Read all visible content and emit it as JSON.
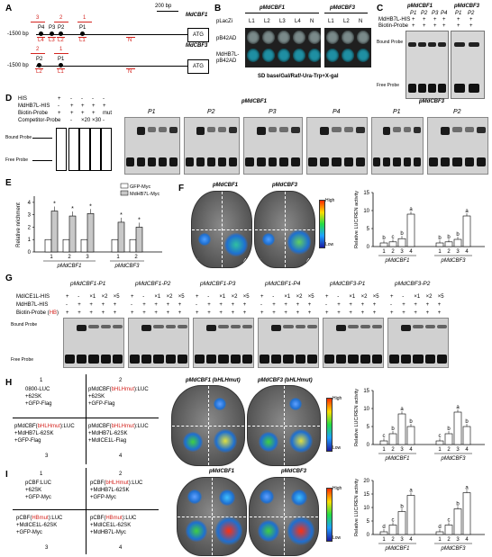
{
  "panels": {
    "A": {
      "label": "A",
      "scale": "200 bp",
      "bp_left": "-1500 bp",
      "gene1": "MdCBF1",
      "gene2": "MdCBF3",
      "atg": "ATG",
      "cbf1_pos": [
        "3",
        "2",
        "1"
      ],
      "cbf1_probes": [
        "P4",
        "P3",
        "P2",
        "P1"
      ],
      "cbf1_lanes": [
        "L4",
        "L3",
        "L2",
        "L1"
      ],
      "cbf3_pos": [
        "2",
        "1"
      ],
      "cbf3_probes": [
        "P2",
        "P1"
      ],
      "cbf3_lanes": [
        "L2",
        "L1"
      ],
      "n": "N"
    },
    "B": {
      "label": "B",
      "col1": "pMdCBF1",
      "col2": "pMdCBF3",
      "row0": "pLacZi",
      "row1": "pB42AD",
      "row2a": "MdHB7L-",
      "row2b": "pB42AD",
      "lanes1": [
        "L1",
        "L2",
        "L3",
        "L4",
        "N"
      ],
      "lanes2": [
        "L1",
        "L2",
        "N"
      ],
      "caption": "SD base/Gal/Raf/-Ura-Trp+X-gal"
    },
    "C": {
      "label": "C",
      "col1": "pMdCBF1",
      "col2": "pMdCBF3",
      "lanes1": [
        "P1",
        "P2",
        "P3",
        "P4"
      ],
      "lanes2": [
        "P1",
        "P2"
      ],
      "row1": "MdHB7L-HIS",
      "row2": "Biotin-Probe",
      "plus": "+",
      "bound": "Bound Probe",
      "free": "Free Probe"
    },
    "D": {
      "label": "D",
      "rows": [
        "HIS",
        "MdHB7L-HIS",
        "Biotin-Probe",
        "Competitor-Probe"
      ],
      "lane_vals": [
        [
          "+",
          "-",
          "-",
          "-",
          "-"
        ],
        [
          "-",
          "+",
          "+",
          "+",
          "+"
        ],
        [
          "+",
          "+",
          "+",
          "+",
          "mut"
        ],
        [
          "-",
          "-",
          "×20",
          "×30",
          "-"
        ]
      ],
      "bound": "Bound Probe",
      "free": "Free Probe",
      "cbf1": "pMdCBF1",
      "cbf3": "pMdCBF3",
      "gels1": [
        "P1",
        "P2",
        "P3",
        "P4"
      ],
      "gels2": [
        "P1",
        "P2"
      ]
    },
    "E": {
      "label": "E",
      "ylabel": "Relative nrichment",
      "legend": [
        "GFP-Myc",
        "MdHB7L-Myc"
      ],
      "xlabels1": [
        "1",
        "2",
        "3"
      ],
      "xlabels2": [
        "1",
        "2"
      ],
      "group1": "pMdCBF1",
      "group2": "pMdCBF3",
      "yticks": [
        "0",
        "1",
        "2",
        "3",
        "4"
      ],
      "star": "*"
    },
    "F": {
      "label": "F",
      "leaf1": "pMdCBF1",
      "leaf2": "pMdCBF3",
      "quads": [
        "1",
        "2",
        "3",
        "4"
      ],
      "high": "High",
      "low": "Low",
      "ylabel": "Relative LUC/REN activity",
      "yticks": [
        "0",
        "5",
        "10",
        "15"
      ],
      "letters1": [
        "b",
        "c",
        "b",
        "a"
      ],
      "letters2": [
        "b",
        "b",
        "b",
        "a"
      ],
      "group1": "pMdCBF1",
      "group2": "pMdCBF3",
      "xlabels": [
        "1",
        "2",
        "3",
        "4"
      ]
    },
    "G": {
      "label": "G",
      "titles": [
        "pMdCBF1-P1",
        "pMdCBF1-P2",
        "pMdCBF1-P3",
        "pMdCBF1-P4",
        "pMdCBF3-P1",
        "pMdCBF3-P2"
      ],
      "row1": "MdICE1L-HIS",
      "row2": "MdHB7L-HIS",
      "row3a": "Biotin-Probe (",
      "row3b": "HB",
      "row3c": ")",
      "r1": [
        "+",
        "-",
        "×1",
        "×2",
        "×5"
      ],
      "r2": [
        "-",
        "+",
        "+",
        "+",
        "+"
      ],
      "r3": [
        "+",
        "+",
        "+",
        "+",
        "+"
      ],
      "bound": "Bound Probe",
      "free": "Free Probe"
    },
    "H": {
      "label": "H",
      "q1_num": "1",
      "q1_lines": [
        "0800-LUC",
        "+62SK",
        "+GFP-Flag"
      ],
      "q2_num": "2",
      "q2_l1a": "pMdCBF(",
      "q2_l1b": "bHLHmut",
      "q2_l1c": "):LUC",
      "q2_lines": [
        "+62SK",
        "+GFP-Flag"
      ],
      "q3_num": "3",
      "q3_l1a": "pMdCBF(",
      "q3_l1b": "bHLHmut",
      "q3_l1c": "):LUC",
      "q3_lines": [
        "+MdHB7L-62SK",
        "+GFP-Flag"
      ],
      "q4_num": "4",
      "q4_l1a": "pMdCBF(",
      "q4_l1b": "bHLHmut",
      "q4_l1c": "):LUC",
      "q4_lines": [
        "+MdHB7L-62SK",
        "+MdICE1L-Flag"
      ],
      "leaf1": "pMdCBF1 (bHLHmut)",
      "leaf2": "pMdCBF3 (bHLHmut)",
      "ylabel": "Relative LUC/REN activity",
      "yticks": [
        "0",
        "5",
        "10",
        "15"
      ],
      "letters1": [
        "c",
        "b",
        "a",
        "b"
      ],
      "letters2": [
        "c",
        "b",
        "a",
        "b"
      ],
      "group1": "pMdCBF1",
      "group2": "pMdCBF3",
      "high": "High",
      "low": "Low"
    },
    "I": {
      "label": "I",
      "q1_num": "1",
      "q1_lines": [
        "pCBF:LUC",
        "+62SK",
        "+GFP-Myc"
      ],
      "q2_num": "2",
      "q2_l1a": "pCBF(",
      "q2_l1b": "bHLHmut",
      "q2_l1c": "):LUC",
      "q2_lines": [
        "+MdHB7L-62SK",
        "+GFP-Myc"
      ],
      "q3_num": "3",
      "q3_l1a": "pCBF(",
      "q3_l1b": "HBmut",
      "q3_l1c": "):LUC",
      "q3_lines": [
        "+MdICE1L-62SK",
        "+GFP-Myc"
      ],
      "q4_num": "4",
      "q4_l1a": "pCBF(",
      "q4_l1b": "HBmut",
      "q4_l1c": "):LUC",
      "q4_lines": [
        "+MdICE1L-62SK",
        "+MdHB7L-Myc"
      ],
      "leaf1": "pMdCBF1",
      "leaf2": "pMdCBF3",
      "ylabel": "Relative LUC/REN activity",
      "yticks": [
        "0",
        "5",
        "10",
        "15",
        "20"
      ],
      "letters1": [
        "d",
        "c",
        "b",
        "a"
      ],
      "letters2": [
        "d",
        "c",
        "b",
        "a"
      ],
      "group1": "pMdCBF1",
      "group2": "pMdCBF3",
      "high": "High",
      "low": "Low"
    }
  },
  "colors": {
    "red": "#d4241f",
    "gel_bg": "#d6d6d6",
    "band": "#1b1b1b",
    "leaf": "#505050",
    "colony_blue": "#1f8fa3"
  },
  "chart_data": [
    {
      "type": "bar",
      "panel": "E",
      "categories": [
        "pMdCBF1-1",
        "pMdCBF1-2",
        "pMdCBF1-3",
        "pMdCBF3-1",
        "pMdCBF3-2"
      ],
      "series": [
        {
          "name": "GFP-Myc",
          "values": [
            1.0,
            1.0,
            1.0,
            1.0,
            1.0
          ]
        },
        {
          "name": "MdHB7L-Myc",
          "values": [
            3.3,
            2.9,
            3.1,
            2.4,
            2.0
          ]
        }
      ],
      "ylim": [
        0,
        4.5
      ]
    },
    {
      "type": "bar",
      "panel": "F",
      "categories": [
        "1",
        "2",
        "3",
        "4",
        "1",
        "2",
        "3",
        "4"
      ],
      "values": [
        1.0,
        1.3,
        2.2,
        9.0,
        1.0,
        1.3,
        2.0,
        8.5
      ],
      "ylim": [
        0,
        15
      ]
    },
    {
      "type": "bar",
      "panel": "H",
      "categories": [
        "1",
        "2",
        "3",
        "4",
        "1",
        "2",
        "3",
        "4"
      ],
      "values": [
        1.0,
        3.0,
        8.5,
        5.0,
        1.0,
        3.0,
        9.0,
        5.0
      ],
      "ylim": [
        0,
        15
      ]
    },
    {
      "type": "bar",
      "panel": "I",
      "categories": [
        "1",
        "2",
        "3",
        "4",
        "1",
        "2",
        "3",
        "4"
      ],
      "values": [
        1.0,
        3.5,
        8.5,
        14.5,
        1.0,
        3.5,
        9.5,
        15.5
      ],
      "ylim": [
        0,
        20
      ]
    }
  ]
}
